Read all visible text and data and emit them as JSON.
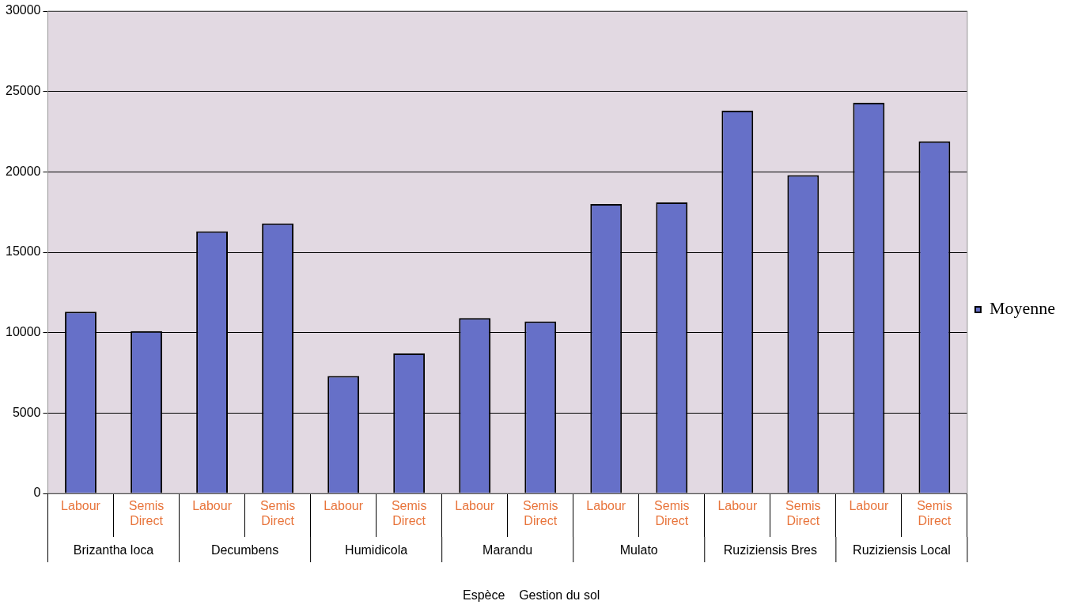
{
  "chart_data": {
    "type": "bar",
    "xlabel": "Espèce    Gestion du sol",
    "categories": [
      "Labour",
      "Semis Direct",
      "Labour",
      "Semis Direct",
      "Labour",
      "Semis Direct",
      "Labour",
      "Semis Direct",
      "Labour",
      "Semis Direct",
      "Labour",
      "Semis Direct",
      "Labour",
      "Semis Direct"
    ],
    "series": [
      {
        "name": "Moyenne",
        "color": "#6670c8",
        "values": [
          11300,
          10100,
          16300,
          16800,
          7300,
          8700,
          10900,
          10700,
          18000,
          18100,
          23800,
          19800,
          24300,
          21900
        ]
      }
    ],
    "annotations": [
      "Brizantha loca",
      "Decumbens",
      "Humidicola",
      "Marandu",
      "Mulato",
      "Ruziziensis Bres",
      "Ruziziensis Local"
    ],
    "ylim": [
      0,
      30000
    ],
    "yticks": [
      0,
      5000,
      10000,
      15000,
      20000,
      25000,
      30000
    ],
    "grid": "y",
    "legend": "right"
  }
}
